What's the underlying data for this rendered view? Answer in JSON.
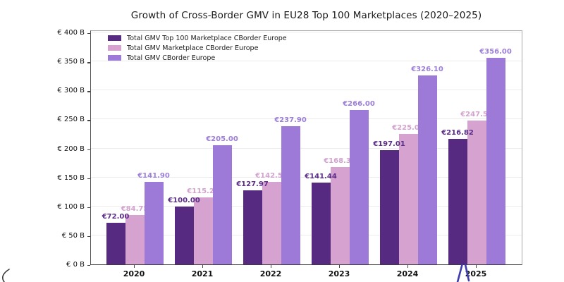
{
  "title": "Growth of Cross-Border GMV in EU28 Top 100 Marketplaces (2020–2025)",
  "chart_data": {
    "type": "bar",
    "title": "Growth of Cross-Border GMV in EU28 Top 100 Marketplaces (2020–2025)",
    "categories": [
      "2020",
      "2021",
      "2022",
      "2023",
      "2024",
      "2025"
    ],
    "series": [
      {
        "name": "Total GMV Top 100 Marketplace CBorder Europe",
        "color": "#572a82",
        "label_color": "#5b2c87",
        "values": [
          72.0,
          100.0,
          127.97,
          141.44,
          197.01,
          216.82
        ],
        "labels": [
          "€72.00",
          "€100.00",
          "€127.97",
          "€141.44",
          "€197.01",
          "€216.82"
        ]
      },
      {
        "name": "Total GMV Marketplace CBorder Europe",
        "color": "#d6a3d1",
        "label_color": "#d2a3ce",
        "values": [
          84.75,
          115.23,
          142.57,
          168.37,
          225.0,
          247.5
        ],
        "labels": [
          "€84.75",
          "€115.23",
          "€142.57",
          "€168.37",
          "€225.00",
          "€247.50"
        ]
      },
      {
        "name": "Total GMV CBorder Europe",
        "color": "#9e7ad8",
        "label_color": "#9c7fd6",
        "values": [
          141.9,
          205.0,
          237.9,
          266.0,
          326.1,
          356.0
        ],
        "labels": [
          "€141.90",
          "€205.00",
          "€237.90",
          "€266.00",
          "€326.10",
          "€356.00"
        ]
      }
    ],
    "y_axis": {
      "min": 0,
      "max": 400,
      "step": 50,
      "tick_labels": [
        "€ 0 B",
        "€ 50 B",
        "€ 100 B",
        "€ 150 B",
        "€ 200 B",
        "€ 250 B",
        "€ 300 B",
        "€ 350 B",
        "€ 400 B"
      ]
    },
    "legend_position": "upper left",
    "grid": true
  },
  "annotations": {
    "caret_mark": {
      "description": "hand-drawn caret stroke below 2025 tick",
      "color": "#3d3db0"
    },
    "corner_stroke": {
      "description": "partial pen stroke in bottom-left corner",
      "color": "#3a3a3a"
    }
  },
  "colors": {
    "background": "#ffffff",
    "grid": "#ececec",
    "axis": "#444444",
    "spine": "#a9a9a9",
    "title_text": "#1a1a1a"
  }
}
